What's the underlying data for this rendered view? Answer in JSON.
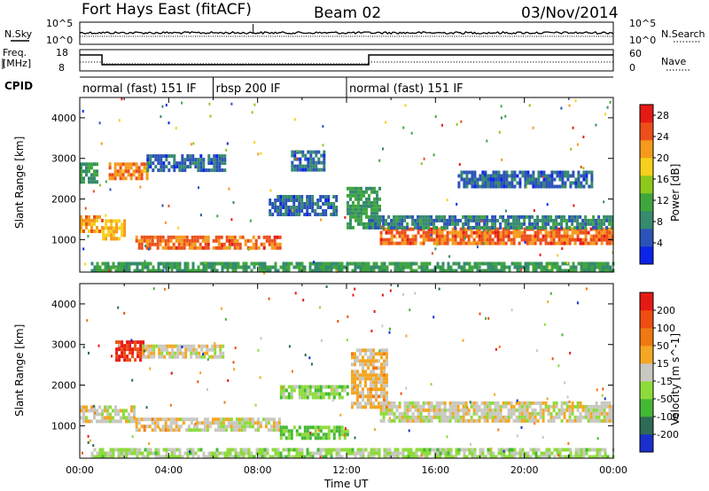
{
  "header": {
    "station": "Fort Hays East (fitACF)",
    "beam": "Beam 02",
    "date": "03/Nov/2014"
  },
  "labels": {
    "nsky": "N.Sky",
    "nsearch": "N.Search",
    "freq_line1": "Freq.",
    "freq_line2": "[MHz]",
    "nave": "Nave",
    "cpid": "CPID",
    "noise_ticks_left": [
      "10^5",
      "10^0"
    ],
    "noise_ticks_right": [
      "10^5",
      "10^0"
    ],
    "freq_ticks_left": [
      "18",
      "8"
    ],
    "nave_ticks_right": [
      "60",
      "0"
    ]
  },
  "modes": [
    {
      "start_hour": 0,
      "end_hour": 6,
      "label": "normal (fast) 151 IF"
    },
    {
      "start_hour": 6,
      "end_hour": 12,
      "label": "rbsp 200 IF"
    },
    {
      "start_hour": 12,
      "end_hour": 24,
      "label": "normal (fast) 151 IF"
    }
  ],
  "chart_data": [
    {
      "type": "heatmap",
      "name": "Power",
      "ylabel": "Slant Range [km]",
      "xlabel": "",
      "xlim_hours": [
        0,
        24
      ],
      "ylim_km": [
        200,
        4500
      ],
      "ytick_labels": [
        "1000",
        "2000",
        "3000",
        "4000"
      ],
      "colorbar": {
        "label": "Power [dB]",
        "tick_labels": [
          "4",
          "8",
          "12",
          "16",
          "20",
          "24",
          "28"
        ],
        "range": [
          0,
          30
        ],
        "colors": [
          "#0a24ea",
          "#2c53b8",
          "#368a6e",
          "#3fa63f",
          "#8ec81b",
          "#f7d01b",
          "#f59a1c",
          "#ec4f19",
          "#e61a14"
        ]
      },
      "echo_regions": [
        {
          "t": [
            0.0,
            1.0
          ],
          "range": [
            1200,
            1600
          ],
          "level": 22
        },
        {
          "t": [
            1.0,
            2.0
          ],
          "range": [
            1000,
            1500
          ],
          "level": 20
        },
        {
          "t": [
            0.0,
            0.8
          ],
          "range": [
            2400,
            2900
          ],
          "level": 10
        },
        {
          "t": [
            1.3,
            3.0
          ],
          "range": [
            2500,
            2900
          ],
          "level": 22
        },
        {
          "t": [
            3.0,
            6.5
          ],
          "range": [
            2700,
            3100
          ],
          "level": 6
        },
        {
          "t": [
            2.5,
            9.0
          ],
          "range": [
            800,
            1100
          ],
          "level": 24
        },
        {
          "t": [
            8.5,
            11.5
          ],
          "range": [
            1600,
            2100
          ],
          "level": 6
        },
        {
          "t": [
            9.5,
            11.0
          ],
          "range": [
            2700,
            3200
          ],
          "level": 6
        },
        {
          "t": [
            12.0,
            13.5
          ],
          "range": [
            1300,
            2300
          ],
          "level": 10
        },
        {
          "t": [
            13.5,
            24.0
          ],
          "range": [
            900,
            1300
          ],
          "level": 24
        },
        {
          "t": [
            13.0,
            24.0
          ],
          "range": [
            1300,
            1600
          ],
          "level": 8
        },
        {
          "t": [
            17.0,
            23.0
          ],
          "range": [
            2300,
            2700
          ],
          "level": 6
        },
        {
          "t": [
            0.5,
            24.0
          ],
          "range": [
            250,
            450
          ],
          "level": 10
        }
      ]
    },
    {
      "type": "heatmap",
      "name": "Velocity",
      "ylabel": "Slant Range [km]",
      "xlabel": "Time UT",
      "xlim_hours": [
        0,
        24
      ],
      "ylim_km": [
        200,
        4500
      ],
      "xtick_labels": [
        "00:00",
        "04:00",
        "08:00",
        "12:00",
        "16:00",
        "20:00",
        "00:00"
      ],
      "ytick_labels": [
        "1000",
        "2000",
        "3000",
        "4000"
      ],
      "colorbar": {
        "label": "Velocity [m s^-1]",
        "tick_labels": [
          "200",
          "100",
          "50",
          "15",
          "-15",
          "-50",
          "-100",
          "-200"
        ],
        "range": [
          -250,
          250
        ],
        "colors": [
          "#1a2fcc",
          "#2e6a55",
          "#45b836",
          "#8edb3c",
          "#c8c8c0",
          "#f5a623",
          "#f07a12",
          "#ee4e13",
          "#e61a14"
        ]
      },
      "echo_regions": [
        {
          "t": [
            0.0,
            2.5
          ],
          "range": [
            1100,
            1500
          ],
          "level": 0
        },
        {
          "t": [
            1.6,
            2.8
          ],
          "range": [
            2600,
            3100
          ],
          "level": 200
        },
        {
          "t": [
            2.8,
            6.5
          ],
          "range": [
            2700,
            3000
          ],
          "level": 0
        },
        {
          "t": [
            2.5,
            4.5
          ],
          "range": [
            900,
            1200
          ],
          "level": 40
        },
        {
          "t": [
            4.5,
            9.0
          ],
          "range": [
            900,
            1200
          ],
          "level": 0
        },
        {
          "t": [
            9.0,
            12.0
          ],
          "range": [
            1700,
            2000
          ],
          "level": -60
        },
        {
          "t": [
            9.0,
            12.0
          ],
          "range": [
            700,
            1000
          ],
          "level": -80
        },
        {
          "t": [
            12.2,
            13.8
          ],
          "range": [
            1500,
            2900
          ],
          "level": 40
        },
        {
          "t": [
            13.5,
            24.0
          ],
          "range": [
            1100,
            1600
          ],
          "level": 0
        },
        {
          "t": [
            0.5,
            24.0
          ],
          "range": [
            250,
            450
          ],
          "level": -40
        }
      ]
    }
  ]
}
